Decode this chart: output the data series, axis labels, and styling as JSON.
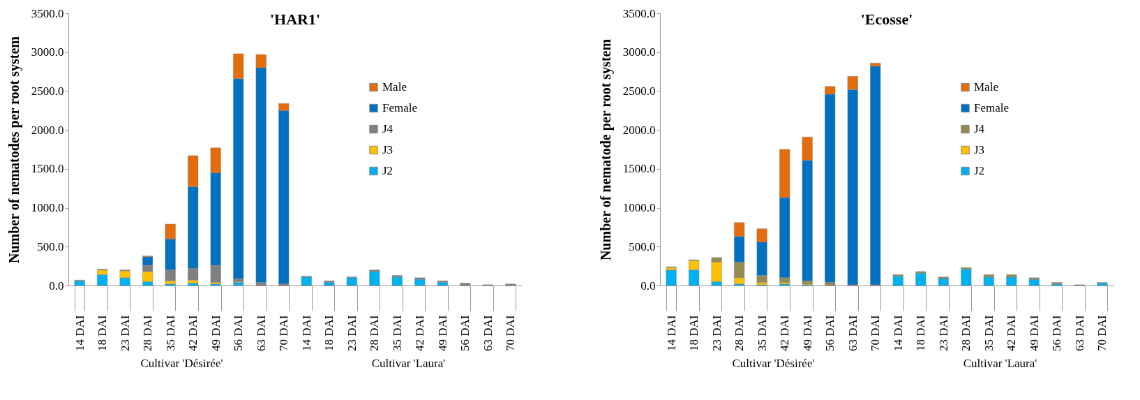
{
  "chart_data": [
    {
      "type": "bar",
      "title": "'HAR1'",
      "ylabel": "Number of nematodes per root system",
      "stacked": true,
      "legend": "right",
      "grid": false,
      "categories": [
        "14 DAI",
        "18 DAI",
        "23 DAI",
        "28 DAI",
        "35 DAI",
        "42 DAI",
        "49 DAI",
        "56 DAI",
        "63 DAI",
        "70 DAI",
        "14 DAI",
        "18 DAI",
        "23 DAI",
        "28 DAI",
        "35 DAI",
        "42 DAI",
        "49 DAI",
        "56 DAI",
        "63 DAI",
        "70 DAI"
      ],
      "annotations": [
        "Cultivar 'Désirée'",
        "Cultivar 'Laura'"
      ],
      "ylim": [
        0,
        3500
      ],
      "yticks": [
        {
          "value": 0,
          "label": "0.0"
        },
        {
          "value": 500,
          "label": "500.0"
        },
        {
          "value": 1000,
          "label": "1000.0"
        },
        {
          "value": 1500,
          "label": "1500.0"
        },
        {
          "value": 2000,
          "label": "2000.0"
        },
        {
          "value": 2500,
          "label": "2500.0"
        },
        {
          "value": 3000,
          "label": "3000.0"
        },
        {
          "value": 3500,
          "label": "3500.0"
        }
      ],
      "series": [
        {
          "name": "J2",
          "color": "#00b0f0",
          "values": [
            60,
            140,
            100,
            50,
            20,
            30,
            20,
            40,
            null,
            null,
            110,
            40,
            100,
            180,
            110,
            80,
            40,
            null,
            null,
            null
          ]
        },
        {
          "name": "J3",
          "color": "#ffc000",
          "values": [
            null,
            60,
            90,
            130,
            40,
            40,
            20,
            10,
            null,
            null,
            null,
            null,
            null,
            null,
            null,
            null,
            null,
            null,
            null,
            null
          ]
        },
        {
          "name": "J4",
          "color": "#808080",
          "values": [
            10,
            10,
            10,
            80,
            140,
            150,
            220,
            40,
            40,
            20,
            10,
            20,
            10,
            20,
            20,
            20,
            20,
            30,
            10,
            20
          ]
        },
        {
          "name": "Female",
          "color": "#0070c0",
          "values": [
            null,
            null,
            null,
            110,
            400,
            1050,
            1190,
            2570,
            2760,
            2230,
            null,
            null,
            null,
            null,
            null,
            null,
            null,
            null,
            null,
            null
          ]
        },
        {
          "name": "Male",
          "color": "#e46c0a",
          "values": [
            null,
            null,
            null,
            10,
            190,
            400,
            320,
            320,
            170,
            90,
            null,
            null,
            null,
            null,
            null,
            null,
            null,
            null,
            null,
            null
          ]
        }
      ]
    },
    {
      "type": "bar",
      "title": "'Ecosse'",
      "ylabel": "Number of nematode per root system",
      "stacked": true,
      "legend": "right",
      "grid": false,
      "categories": [
        "14 DAI",
        "18 DAI",
        "23 DAI",
        "28 DAI",
        "35 DAI",
        "42 DAI",
        "49 DAI",
        "56 DAI",
        "63 DAI",
        "70 DAI",
        "14 DAI",
        "18 DAI",
        "23 DAI",
        "28 DAI",
        "35 DAI",
        "42 DAI",
        "49 DAI",
        "56 DAI",
        "63 DAI",
        "70 DAI"
      ],
      "annotations": [
        "Cultivar 'Désirée'",
        "Cultivar 'Laura'"
      ],
      "ylim": [
        0,
        3500
      ],
      "yticks": [
        {
          "value": 0,
          "label": "0.0"
        },
        {
          "value": 500,
          "label": "500.0"
        },
        {
          "value": 1000,
          "label": "1000.0"
        },
        {
          "value": 1500,
          "label": "1500.0"
        },
        {
          "value": 2000,
          "label": "2000.0"
        },
        {
          "value": 2500,
          "label": "2500.0"
        },
        {
          "value": 3000,
          "label": "3000.0"
        },
        {
          "value": 3500,
          "label": "3500.0"
        }
      ],
      "series": [
        {
          "name": "J2",
          "color": "#00b0f0",
          "values": [
            200,
            200,
            50,
            20,
            10,
            20,
            10,
            null,
            null,
            null,
            120,
            160,
            90,
            210,
            110,
            110,
            80,
            20,
            null,
            30
          ]
        },
        {
          "name": "J3",
          "color": "#ffc000",
          "values": [
            30,
            120,
            250,
            80,
            30,
            20,
            10,
            null,
            null,
            null,
            null,
            null,
            null,
            null,
            null,
            null,
            null,
            null,
            null,
            null
          ]
        },
        {
          "name": "J4",
          "color": "#948a54",
          "values": [
            10,
            10,
            60,
            200,
            90,
            60,
            40,
            40,
            10,
            10,
            20,
            20,
            20,
            20,
            30,
            30,
            20,
            20,
            10,
            10
          ]
        },
        {
          "name": "Female",
          "color": "#0070c0",
          "values": [
            null,
            null,
            null,
            330,
            430,
            1030,
            1550,
            2420,
            2510,
            2810,
            null,
            null,
            null,
            null,
            null,
            null,
            null,
            null,
            null,
            null
          ]
        },
        {
          "name": "Male",
          "color": "#e46c0a",
          "values": [
            null,
            null,
            null,
            180,
            170,
            620,
            300,
            100,
            170,
            40,
            null,
            null,
            null,
            null,
            null,
            null,
            null,
            null,
            null,
            null
          ]
        }
      ]
    }
  ]
}
